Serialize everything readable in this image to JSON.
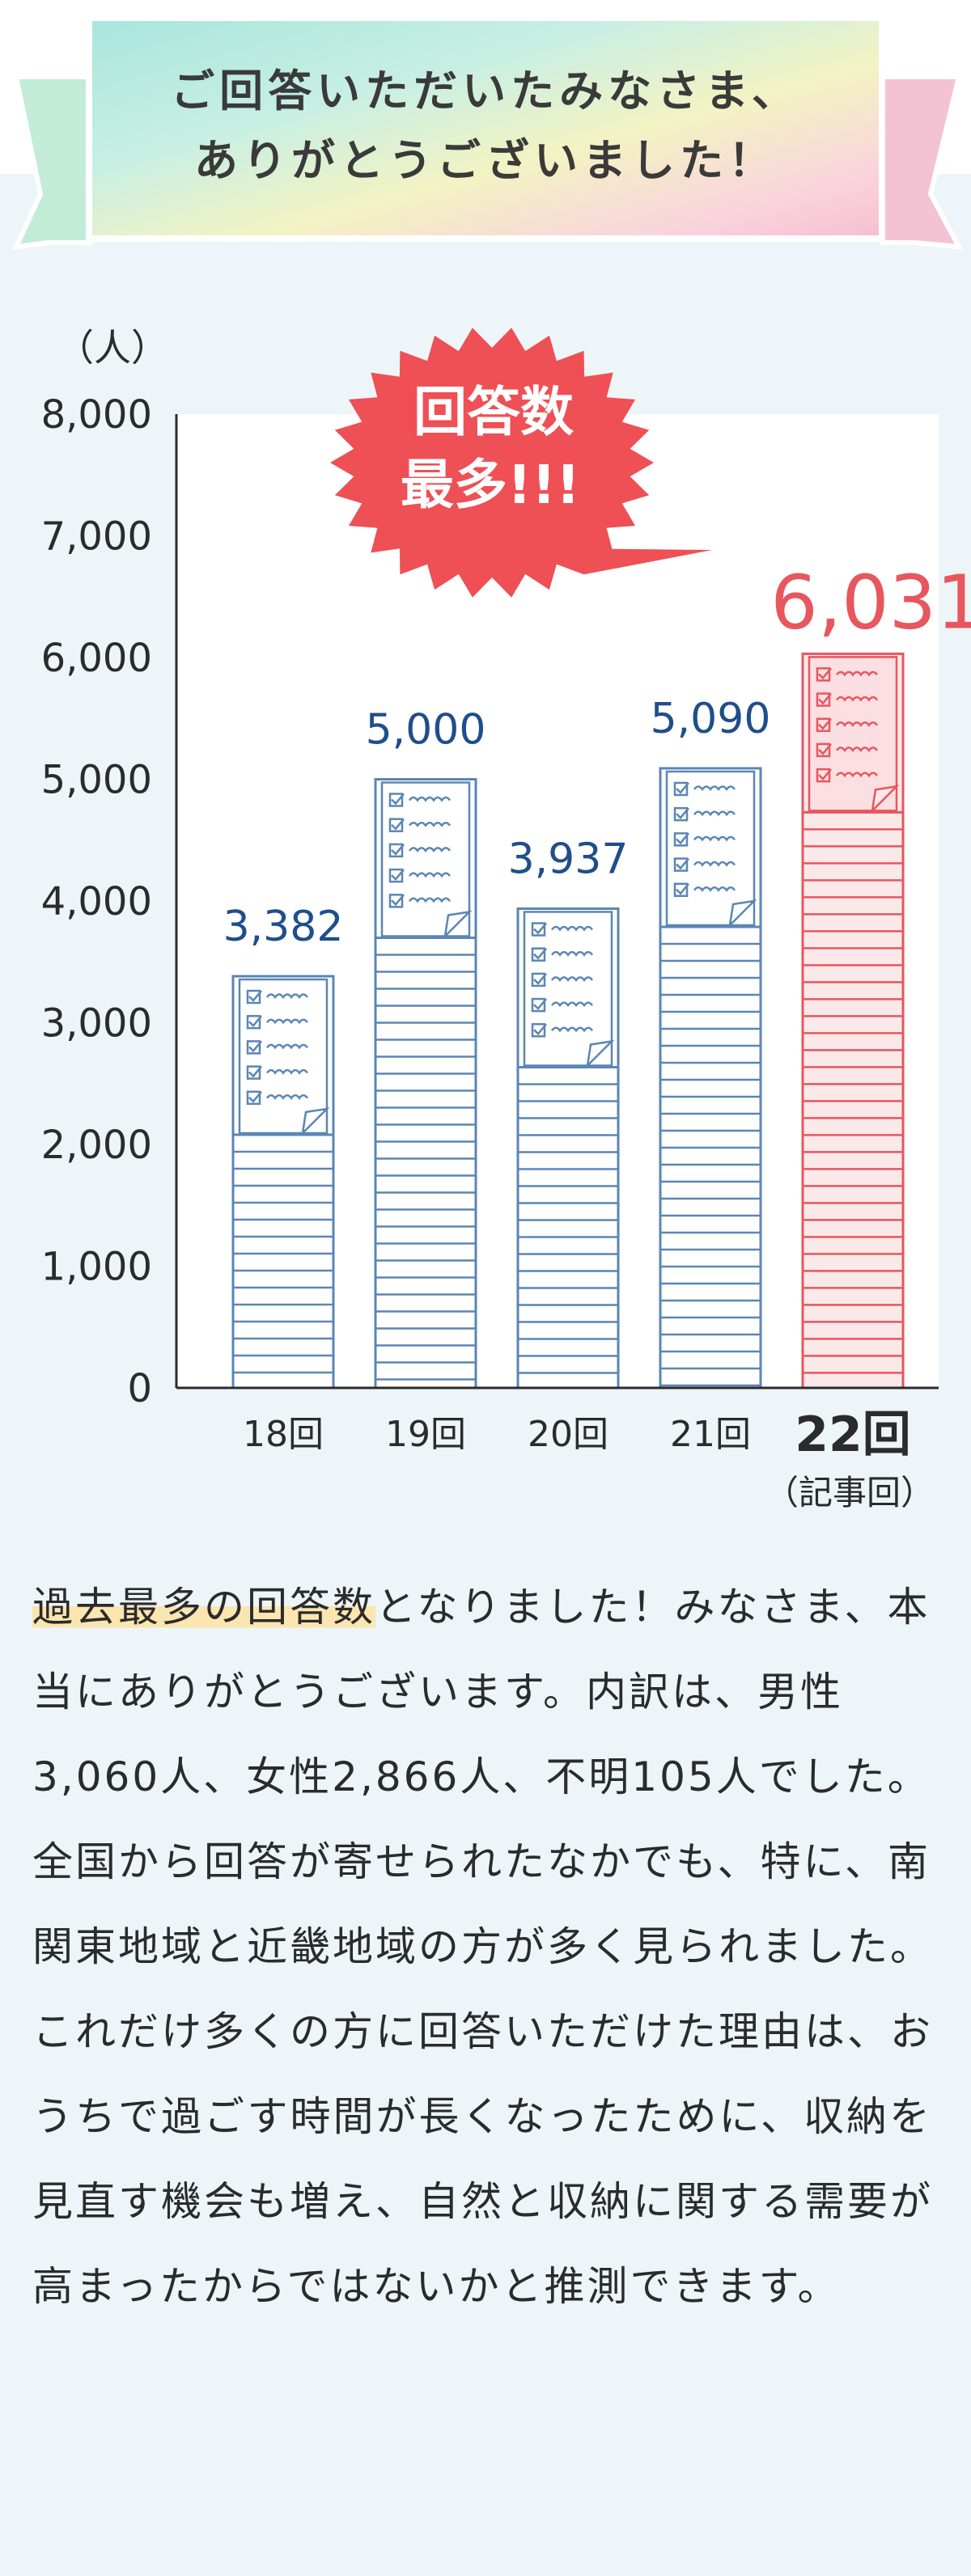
{
  "banner": {
    "line1": "ご回答いただいたみなさま、",
    "line2": "ありがとうございました！"
  },
  "chart_data": {
    "type": "bar",
    "unit_label": "（人）",
    "categories": [
      "18回",
      "19回",
      "20回",
      "21回",
      "22回"
    ],
    "category_note": "（記事回）",
    "values": [
      3382,
      5000,
      3937,
      5090,
      6031
    ],
    "value_labels": [
      "3,382",
      "5,000",
      "3,937",
      "5,090",
      "6,031"
    ],
    "highlight_index": 4,
    "ylim": [
      0,
      8000
    ],
    "yticks": [
      0,
      1000,
      2000,
      3000,
      4000,
      5000,
      6000,
      7000,
      8000
    ],
    "ytick_labels": [
      "0",
      "1,000",
      "2,000",
      "3,000",
      "4,000",
      "5,000",
      "6,000",
      "7,000",
      "8,000"
    ],
    "badge_line1": "回答数",
    "badge_line2": "最多!!!",
    "colors": {
      "bar": "#5b86b4",
      "bar_label": "#1f4e8a",
      "highlight": "#e8565e",
      "axis": "#2b2b2b",
      "plot_bg": "#ffffff"
    }
  },
  "body": {
    "highlight": "過去最多の回答数",
    "text": "となりました！みなさま、本当にありがとうございます。内訳は、男性3,060人、女性2,866人、不明105人でした。全国から回答が寄せられたなかでも、特に、南関東地域と近畿地域の方が多く見られました。これだけ多くの方に回答いただけた理由は、おうちで過ごす時間が長くなったために、収納を見直す機会も増え、自然と収納に関する需要が高まったからではないかと推測できます。"
  }
}
